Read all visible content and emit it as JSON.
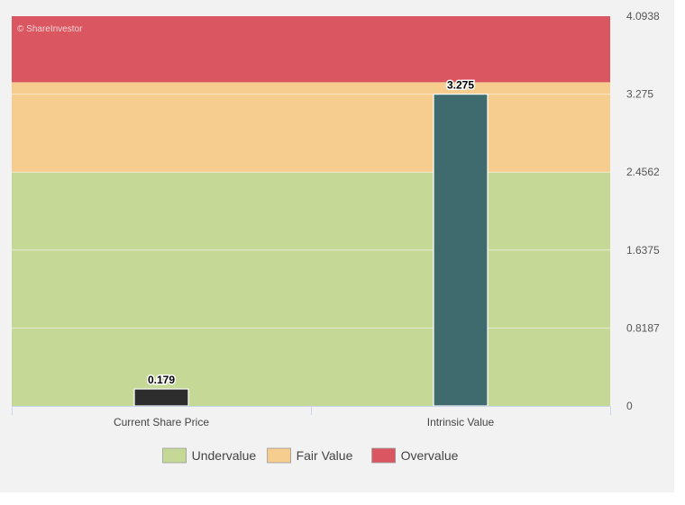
{
  "credit": "© ShareInvestor",
  "chart_data": {
    "type": "bar",
    "categories": [
      "Current Share Price",
      "Intrinsic Value"
    ],
    "series": [
      {
        "values": [
          0.179,
          3.275
        ],
        "colors": [
          "#2d2d2d",
          "#3f6b6e"
        ]
      }
    ],
    "data_labels": [
      "0.179",
      "3.275"
    ],
    "y_ticks": [
      0,
      0.8187,
      1.6375,
      2.4562,
      3.275,
      4.0938
    ],
    "y_tick_labels": [
      "0",
      "0.8187",
      "1.6375",
      "2.4562",
      "3.275",
      "4.0938"
    ],
    "ylim": [
      0,
      4.0938
    ],
    "bands": [
      {
        "name": "Undervalue",
        "from": 0,
        "to": 2.4562,
        "color": "#c6d896"
      },
      {
        "name": "Fair Value",
        "from": 2.4562,
        "to": 3.4,
        "color": "#f6cd8e"
      },
      {
        "name": "Overvalue",
        "from": 3.4,
        "to": 4.0938,
        "color": "#da5661"
      }
    ],
    "legend": {
      "placement": "bottom-center",
      "items": [
        {
          "label": "Undervalue",
          "color": "#c6d896"
        },
        {
          "label": "Fair Value",
          "color": "#f6cd8e"
        },
        {
          "label": "Overvalue",
          "color": "#da5661"
        }
      ]
    },
    "grid": true,
    "ytick_position": "right"
  }
}
